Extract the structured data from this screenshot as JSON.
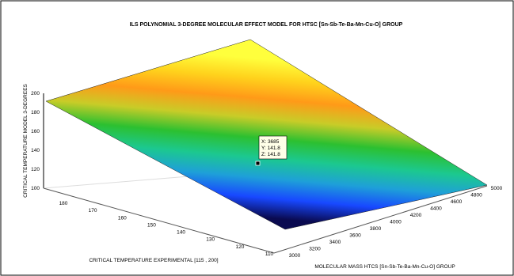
{
  "chart_data": {
    "type": "surface",
    "title": "ILS POLYNOMIAL 3-DEGREE MOLECULAR EFFECT MODEL FOR HTSC [Sn-Sb-Te-Ba-Mn-Cu-O] GROUP",
    "xlabel": "MOLECULAR MASS HTCS [Sn-Sb-Te-Ba-Mn-Cu-O] GROUP",
    "ylabel": "CRITICAL TEMPERATURE EXPERIMENTAL [115 , 200]",
    "zlabel": "CRITICAL TEMPERATURE MODEL 3-DEGREES",
    "x_ticks": [
      "3000",
      "3200",
      "3400",
      "3600",
      "3800",
      "4000",
      "4200",
      "4400",
      "4600",
      "4800",
      "5000"
    ],
    "y_ticks": [
      "110",
      "120",
      "130",
      "140",
      "150",
      "160",
      "170",
      "180"
    ],
    "z_ticks": [
      "100",
      "120",
      "140",
      "160",
      "180",
      "200"
    ],
    "xlim": [
      3000,
      5000
    ],
    "ylim": [
      110,
      190
    ],
    "zlim": [
      100,
      200
    ],
    "surface_z_corners": {
      "x3000_y110": 100,
      "x5000_y110": 100,
      "x3000_y190": 190,
      "x5000_y190": 190
    },
    "colormap": [
      "#0a0a50",
      "#1848ff",
      "#1ea0d8",
      "#1cc890",
      "#2cc030",
      "#c8cc28",
      "#ff9a18",
      "#ffd21c",
      "#ffff3c"
    ],
    "datatip": {
      "x": 3685,
      "y": 141.8,
      "z": 141.8,
      "line1": "X: 3685",
      "line2": "Y: 141.8",
      "line3": "Z: 141.8"
    },
    "grid": false
  }
}
